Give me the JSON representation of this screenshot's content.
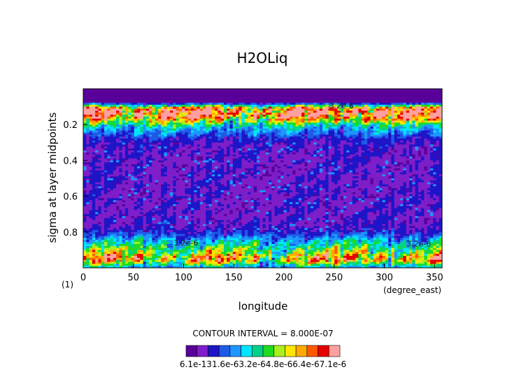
{
  "chart_data": {
    "type": "heatmap",
    "title": "H2OLiq",
    "xlabel": "longitude",
    "ylabel": "sigma at layer midpoints",
    "x_units": "(degree_east)",
    "y_units": "(1)",
    "xlim": [
      0,
      357.5
    ],
    "ylim": [
      1.0,
      0.0
    ],
    "x_ticks": [
      "0",
      "50",
      "100",
      "150",
      "200",
      "250",
      "300",
      "350"
    ],
    "x_tick_values": [
      0,
      50,
      100,
      150,
      200,
      250,
      300,
      350
    ],
    "y_ticks": [
      "0.2",
      "0.4",
      "0.6",
      "0.8"
    ],
    "y_tick_values": [
      0.2,
      0.4,
      0.6,
      0.8
    ],
    "contour_interval_text": "CONTOUR INTERVAL = 8.000E-07",
    "colorbar": {
      "colors": [
        "#5a009a",
        "#7e1ec8",
        "#1e14c8",
        "#1e5ae6",
        "#1e96ff",
        "#00e6ff",
        "#00d28c",
        "#1edc1e",
        "#aaf01e",
        "#ffe600",
        "#ffaa00",
        "#ff5a00",
        "#e60000",
        "#ffa0a0"
      ],
      "labels": [
        "6.1e-13",
        "1.6e-6",
        "3.2e-6",
        "4.8e-6",
        "6.4e-6",
        "7.1e-6"
      ],
      "label_text": "6.1e-131.6e-63.2e-64.8e-66.4e-67.1e-6"
    },
    "level_profile": {
      "sigma": [
        0.0,
        0.035,
        0.055,
        0.075,
        0.09,
        0.11,
        0.13,
        0.15,
        0.17,
        0.19,
        0.21,
        0.23,
        0.255,
        0.28,
        0.32,
        0.4,
        0.5,
        0.6,
        0.7,
        0.78,
        0.82,
        0.845,
        0.87,
        0.895,
        0.92,
        0.945,
        0.965,
        0.985,
        1.0
      ],
      "value": [
        0.0,
        0.0,
        0.0,
        2e-07,
        2.6e-06,
        5.6e-06,
        6.4e-06,
        6e-06,
        5e-06,
        3.8e-06,
        2.8e-06,
        2.2e-06,
        1.8e-06,
        1.2e-06,
        1e-06,
        9e-07,
        9e-07,
        9e-07,
        9e-07,
        1e-06,
        1.7e-06,
        2.4e-06,
        3e-06,
        3.6e-06,
        4.2e-06,
        5.2e-06,
        4.6e-06,
        3e-06,
        2.2e-06
      ]
    },
    "inline_labels": [
      {
        "text": "3.2e-6",
        "lon": 90,
        "sigma": 0.875
      },
      {
        "text": "3.2e-6",
        "lon": 322,
        "sigma": 0.88
      },
      {
        "text": "3.2e-6",
        "lon": 245,
        "sigma": 0.11
      }
    ]
  }
}
